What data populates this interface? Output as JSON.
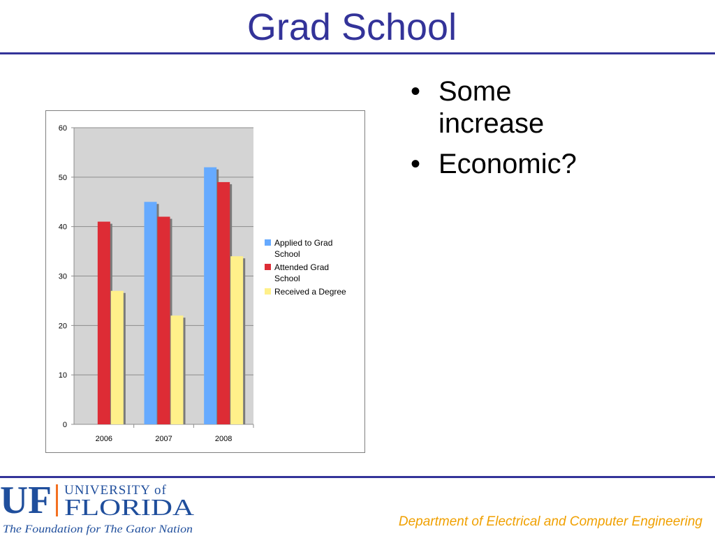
{
  "slide": {
    "title": "Grad School",
    "bullets": [
      "Some increase",
      "Economic?"
    ],
    "department": "Department of Electrical and Computer Engineering"
  },
  "logo": {
    "mark": "UF",
    "university_line": "UNIVERSITY of",
    "state_line": "FLORIDA",
    "tagline": "The Foundation for The Gator Nation",
    "colors": {
      "blue": "#1f4e9c",
      "orange": "#f37021"
    }
  },
  "colors": {
    "title": "#333399",
    "rule": "#333399",
    "department": "#f0a000"
  },
  "chart_data": {
    "type": "bar",
    "categories": [
      "2006",
      "2007",
      "2008"
    ],
    "series": [
      {
        "name": "Applied to Grad School",
        "values": [
          0,
          45,
          52
        ],
        "color": "#66aaff"
      },
      {
        "name": "Attended Grad School",
        "values": [
          41,
          42,
          49
        ],
        "color": "#dd2c35"
      },
      {
        "name": "Received a Degree",
        "values": [
          27,
          22,
          34
        ],
        "color": "#fff08a"
      }
    ],
    "ylim": [
      0,
      60
    ],
    "yticks": [
      0,
      10,
      20,
      30,
      40,
      50,
      60
    ],
    "grid": true,
    "plot_background": "#d4d4d4",
    "legend_position": "right"
  }
}
